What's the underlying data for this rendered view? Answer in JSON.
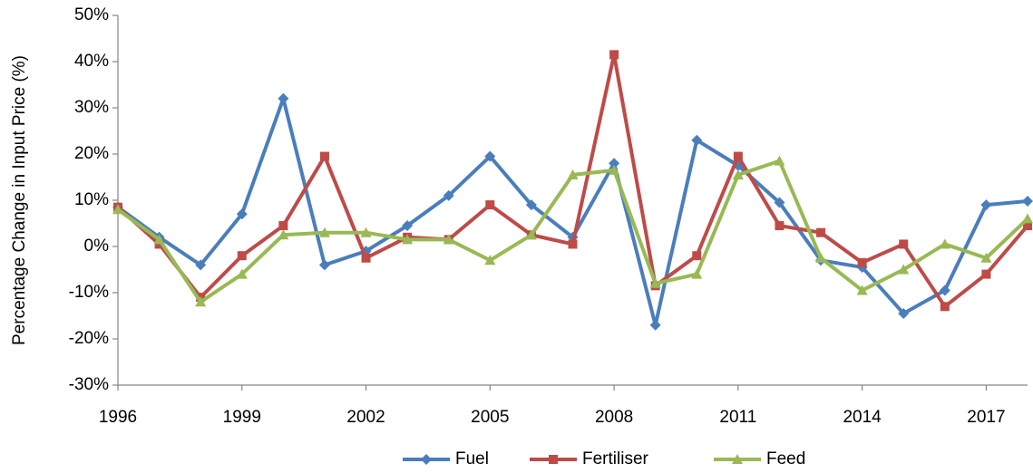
{
  "chart_data": {
    "type": "line",
    "y_label": "Percentage Change in Input Price (%)",
    "x": [
      1996,
      1997,
      1998,
      1999,
      2000,
      2001,
      2002,
      2003,
      2004,
      2005,
      2006,
      2007,
      2008,
      2009,
      2010,
      2011,
      2012,
      2013,
      2014,
      2015,
      2016,
      2017,
      2018
    ],
    "xlim": [
      1996,
      2018
    ],
    "xticks": [
      1996,
      1999,
      2002,
      2005,
      2008,
      2011,
      2014,
      2017
    ],
    "ylim": [
      -30,
      50
    ],
    "yticks": [
      {
        "value": -30,
        "label": "-30%"
      },
      {
        "value": -20,
        "label": "-20%"
      },
      {
        "value": -10,
        "label": "-10%"
      },
      {
        "value": 0,
        "label": "0%"
      },
      {
        "value": 10,
        "label": "10%"
      },
      {
        "value": 20,
        "label": "20%"
      },
      {
        "value": 30,
        "label": "30%"
      },
      {
        "value": 40,
        "label": "40%"
      },
      {
        "value": 50,
        "label": "50%"
      }
    ],
    "grid": false,
    "legend": "bottom",
    "series": [
      {
        "name": "Fuel",
        "color": "#4a7ebb",
        "marker": "diamond",
        "values": [
          8.5,
          2,
          -4,
          7,
          32,
          -4,
          -1,
          4.5,
          11,
          19.5,
          9,
          2,
          18,
          -17,
          23,
          17.5,
          9.5,
          -3,
          -4.5,
          -14.5,
          -9.5,
          9,
          9.8
        ]
      },
      {
        "name": "Fertiliser",
        "color": "#be4b48",
        "marker": "square",
        "values": [
          8.5,
          0.5,
          -11,
          -2,
          4.5,
          19.5,
          -2.5,
          2,
          1.5,
          9,
          2.5,
          0.5,
          41.5,
          -8.5,
          -2,
          19.5,
          4.5,
          3,
          -3.5,
          0.5,
          -13,
          -6,
          4.5
        ]
      },
      {
        "name": "Feed",
        "color": "#98b954",
        "marker": "triangle",
        "values": [
          8,
          1.5,
          -12,
          -6,
          2.5,
          3,
          3,
          1.5,
          1.5,
          -3,
          2.5,
          15.5,
          16.5,
          -8,
          -6,
          15.5,
          18.5,
          -2.5,
          -9.5,
          -5,
          0.5,
          -2.5,
          6
        ]
      }
    ]
  }
}
